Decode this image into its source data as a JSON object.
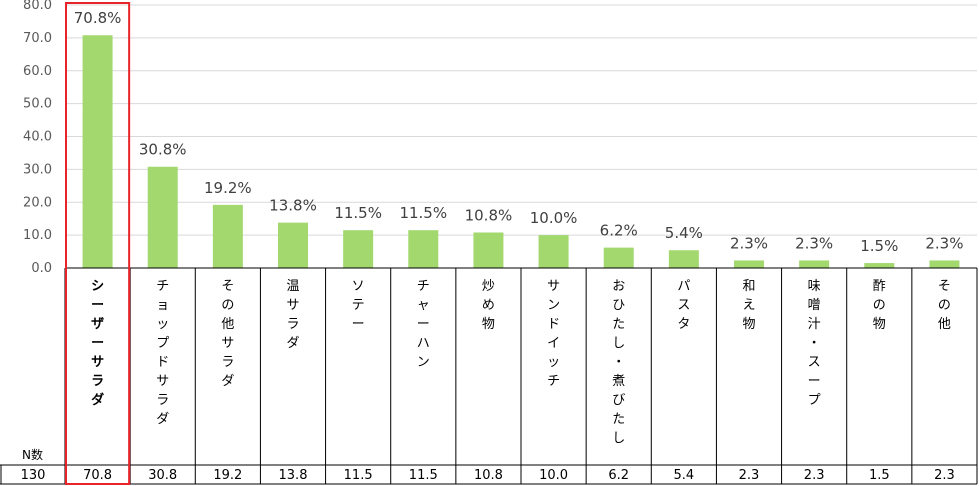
{
  "chart_data": {
    "type": "bar",
    "title": "",
    "xlabel": "",
    "ylabel": "",
    "ylim": [
      0,
      80
    ],
    "y_ticks": [
      "0.0",
      "10.0",
      "20.0",
      "30.0",
      "40.0",
      "50.0",
      "60.0",
      "70.0",
      "80.0"
    ],
    "grid": true,
    "bar_color": "#a3d86f",
    "highlight_color": "#e8232a",
    "highlight_index": 0,
    "categories": [
      "シーザーサラダ",
      "チョップドサラダ",
      "その他サラダ",
      "温サラダ",
      "ソテー",
      "チャーハン",
      "炒め物",
      "サンドイッチ",
      "おひたし・煮びたし",
      "パスタ",
      "和え物",
      "味噌汁・スープ",
      "酢の物",
      "その他"
    ],
    "values": [
      70.8,
      30.8,
      19.2,
      13.8,
      11.5,
      11.5,
      10.8,
      10.0,
      6.2,
      5.4,
      2.3,
      2.3,
      1.5,
      2.3
    ],
    "data_labels": [
      "70.8%",
      "30.8%",
      "19.2%",
      "13.8%",
      "11.5%",
      "11.5%",
      "10.8%",
      "10.0%",
      "6.2%",
      "5.4%",
      "2.3%",
      "2.3%",
      "1.5%",
      "2.3%"
    ],
    "table": {
      "n_header": "N数",
      "n_value": "130",
      "values": [
        "70.8",
        "30.8",
        "19.2",
        "13.8",
        "11.5",
        "11.5",
        "10.8",
        "10.0",
        "6.2",
        "5.4",
        "2.3",
        "2.3",
        "1.5",
        "2.3"
      ]
    }
  }
}
